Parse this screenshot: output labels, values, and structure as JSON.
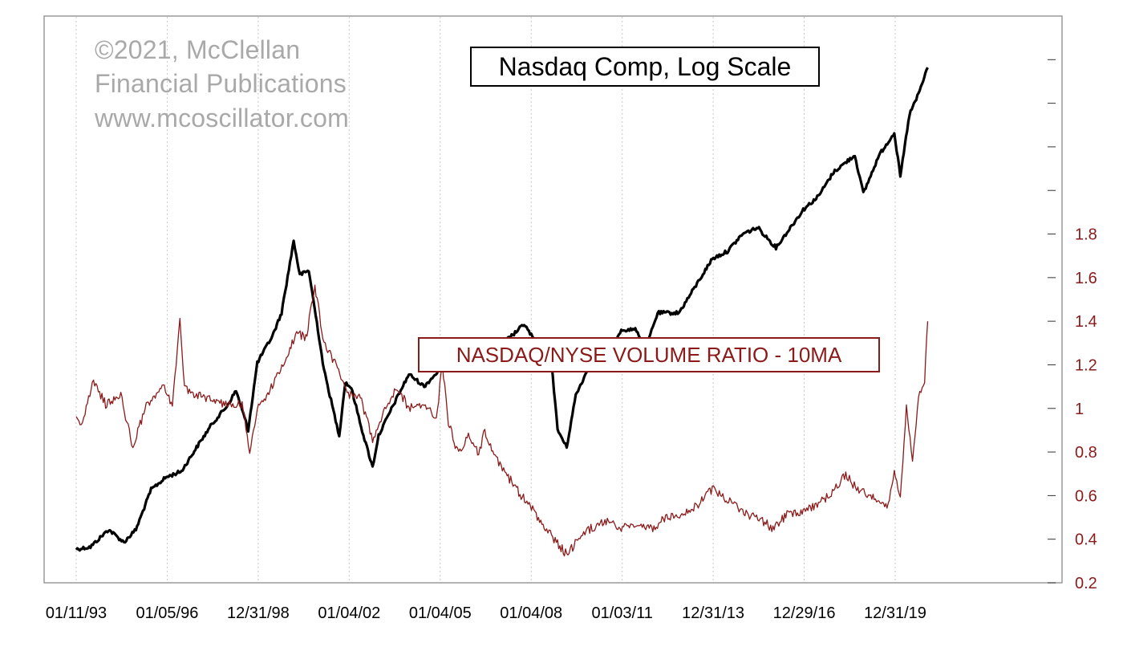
{
  "watermark": {
    "line1": "©2021, McClellan",
    "line2": "Financial Publications",
    "line3": "www.mcoscillator.com"
  },
  "chart_data": {
    "type": "line",
    "title": "Nasdaq Comp, Log Scale",
    "xlabel": "",
    "ylabel": "",
    "grid": "vertical-dotted",
    "x_tick_labels": [
      "01/11/93",
      "01/05/96",
      "12/31/98",
      "01/04/02",
      "01/04/05",
      "01/04/08",
      "01/03/11",
      "12/31/13",
      "12/29/16",
      "12/31/19"
    ],
    "y_right": {
      "ticks": [
        0.2,
        0.4,
        0.6,
        0.8,
        1,
        1.2,
        1.4,
        1.6,
        1.8
      ],
      "tick_labels": [
        "0.2",
        "0.4",
        "0.6",
        "0.8",
        "1",
        "1.2",
        "1.4",
        "1.6",
        "1.8"
      ],
      "ylim": [
        0.2,
        2.8
      ],
      "color": "#8b1a1a"
    },
    "series": [
      {
        "name": "Nasdaq Comp",
        "scale": "log",
        "ylim": [
          560,
          19000
        ],
        "color": "#000000",
        "x": [
          1993.03,
          1993.5,
          1994.1,
          1994.6,
          1995.0,
          1995.5,
          1996.0,
          1996.5,
          1997.0,
          1997.5,
          1998.0,
          1998.3,
          1998.7,
          1999.0,
          1999.5,
          1999.8,
          2000.2,
          2000.4,
          2000.7,
          2001.0,
          2001.2,
          2001.7,
          2001.9,
          2002.1,
          2002.5,
          2002.8,
          2003.0,
          2003.5,
          2004.0,
          2004.5,
          2005.0,
          2005.5,
          2006.0,
          2006.5,
          2007.0,
          2007.5,
          2007.8,
          2008.3,
          2008.7,
          2008.9,
          2009.2,
          2009.5,
          2010.0,
          2010.5,
          2011.0,
          2011.5,
          2011.8,
          2012.2,
          2012.9,
          2013.5,
          2014.0,
          2014.5,
          2015.0,
          2015.5,
          2016.1,
          2016.5,
          2017.0,
          2017.5,
          2018.0,
          2018.7,
          2018.98,
          2019.5,
          2020.0,
          2020.2,
          2020.5,
          2020.8,
          2021.1
        ],
        "values": [
          690,
          700,
          780,
          720,
          780,
          1000,
          1080,
          1120,
          1300,
          1500,
          1680,
          1850,
          1450,
          2200,
          2600,
          3000,
          4700,
          3800,
          3900,
          2700,
          2100,
          1400,
          1950,
          1880,
          1400,
          1150,
          1400,
          1700,
          2050,
          1900,
          2100,
          2150,
          2300,
          2100,
          2450,
          2650,
          2800,
          2400,
          2200,
          1450,
          1300,
          1800,
          2200,
          2200,
          2700,
          2700,
          2400,
          3000,
          3000,
          3600,
          4200,
          4400,
          4900,
          5100,
          4500,
          5000,
          5700,
          6200,
          7200,
          8000,
          6300,
          8000,
          9200,
          7000,
          10300,
          11700,
          13800
        ]
      },
      {
        "name": "NASDAQ/NYSE VOLUME RATIO - 10MA",
        "scale": "linear",
        "ylim": [
          0.2,
          2.8
        ],
        "color": "#8b1a1a",
        "x": [
          1993.03,
          1993.2,
          1993.6,
          1994.0,
          1994.5,
          1994.9,
          1995.3,
          1995.6,
          1995.9,
          1996.2,
          1996.45,
          1996.6,
          1997.0,
          1997.5,
          1998.0,
          1998.5,
          1998.75,
          1999.0,
          1999.5,
          2000.0,
          2000.3,
          2000.6,
          2000.9,
          2001.2,
          2001.6,
          2002.0,
          2002.4,
          2002.8,
          2003.2,
          2003.6,
          2004.0,
          2004.5,
          2004.9,
          2005.1,
          2005.3,
          2005.6,
          2006.0,
          2006.3,
          2006.5,
          2006.8,
          2007.2,
          2007.7,
          2008.0,
          2008.5,
          2008.9,
          2009.2,
          2009.6,
          2010.0,
          2010.5,
          2011.0,
          2011.5,
          2012.0,
          2012.5,
          2013.0,
          2013.5,
          2014.0,
          2014.5,
          2015.0,
          2015.5,
          2016.0,
          2016.5,
          2017.0,
          2017.5,
          2018.0,
          2018.4,
          2018.8,
          2019.3,
          2019.8,
          2020.0,
          2020.2,
          2020.4,
          2020.6,
          2020.8,
          2021.0,
          2021.1
        ],
        "values": [
          0.98,
          0.92,
          1.12,
          1.02,
          1.06,
          0.82,
          1.0,
          1.05,
          1.1,
          1.02,
          1.4,
          1.1,
          1.06,
          1.04,
          1.02,
          1.02,
          0.8,
          1.0,
          1.1,
          1.25,
          1.35,
          1.32,
          1.56,
          1.3,
          1.2,
          1.06,
          1.05,
          0.86,
          1.0,
          1.1,
          1.0,
          1.02,
          0.95,
          1.2,
          0.94,
          0.8,
          0.88,
          0.78,
          0.9,
          0.78,
          0.7,
          0.6,
          0.55,
          0.45,
          0.38,
          0.33,
          0.4,
          0.45,
          0.48,
          0.45,
          0.47,
          0.45,
          0.5,
          0.52,
          0.55,
          0.63,
          0.58,
          0.52,
          0.5,
          0.45,
          0.52,
          0.53,
          0.56,
          0.62,
          0.7,
          0.62,
          0.6,
          0.55,
          0.7,
          0.6,
          1.0,
          0.75,
          1.05,
          1.12,
          1.4
        ]
      }
    ]
  }
}
